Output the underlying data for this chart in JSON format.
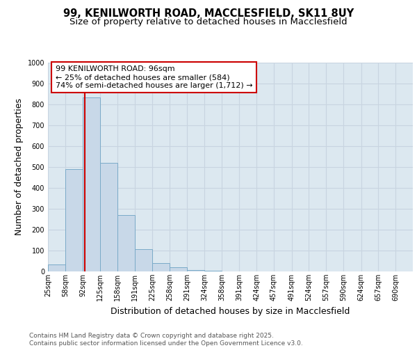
{
  "title_line1": "99, KENILWORTH ROAD, MACCLESFIELD, SK11 8UY",
  "title_line2": "Size of property relative to detached houses in Macclesfield",
  "xlabel": "Distribution of detached houses by size in Macclesfield",
  "ylabel": "Number of detached properties",
  "bar_values": [
    35,
    490,
    835,
    520,
    270,
    108,
    40,
    20,
    8,
    5,
    0,
    0,
    0,
    0,
    0,
    0,
    0,
    0,
    0,
    0
  ],
  "bin_labels": [
    "25sqm",
    "58sqm",
    "92sqm",
    "125sqm",
    "158sqm",
    "191sqm",
    "225sqm",
    "258sqm",
    "291sqm",
    "324sqm",
    "358sqm",
    "391sqm",
    "424sqm",
    "457sqm",
    "491sqm",
    "524sqm",
    "557sqm",
    "590sqm",
    "624sqm",
    "657sqm",
    "690sqm"
  ],
  "bin_edges": [
    25,
    58,
    92,
    125,
    158,
    191,
    225,
    258,
    291,
    324,
    358,
    391,
    424,
    457,
    491,
    524,
    557,
    590,
    624,
    657,
    690
  ],
  "bar_color": "#c8d8e8",
  "bar_edge_color": "#7aaac8",
  "grid_color": "#c8d4e0",
  "background_color": "#dce8f0",
  "vline_x": 96,
  "vline_color": "#cc0000",
  "annotation_text": "99 KENILWORTH ROAD: 96sqm\n← 25% of detached houses are smaller (584)\n74% of semi-detached houses are larger (1,712) →",
  "annotation_box_color": "#ffffff",
  "annotation_box_edge_color": "#cc0000",
  "ylim": [
    0,
    1000
  ],
  "yticks": [
    0,
    100,
    200,
    300,
    400,
    500,
    600,
    700,
    800,
    900,
    1000
  ],
  "footer_text": "Contains HM Land Registry data © Crown copyright and database right 2025.\nContains public sector information licensed under the Open Government Licence v3.0.",
  "title_fontsize": 10.5,
  "subtitle_fontsize": 9.5,
  "axis_label_fontsize": 9,
  "tick_fontsize": 7,
  "annotation_fontsize": 8,
  "footer_fontsize": 6.5
}
